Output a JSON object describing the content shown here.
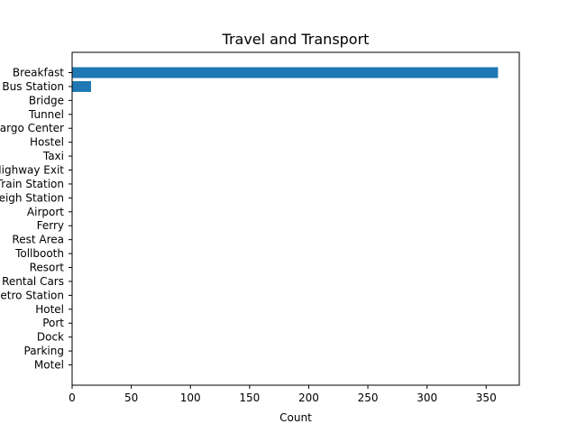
{
  "chart_data": {
    "type": "bar",
    "orientation": "horizontal",
    "title": "Travel and Transport",
    "xlabel": "Count",
    "ylabel": "",
    "xlim": [
      0,
      378
    ],
    "xticks": [
      0,
      50,
      100,
      150,
      200,
      250,
      300,
      350
    ],
    "grid": false,
    "bar_color": "#1f77b4",
    "categories": [
      "Breakfast",
      "Bus Station",
      "Bridge",
      "Tunnel",
      "Cargo Center",
      "Hostel",
      "Taxi",
      "Highway Exit",
      "Train Station",
      "Weigh Station",
      "Airport",
      "Ferry",
      "Rest Area",
      "Tollbooth",
      "Resort",
      "Rental Cars",
      "Metro Station",
      "Hotel",
      "Port",
      "Dock",
      "Parking",
      "Motel"
    ],
    "values": [
      360,
      16,
      0,
      0,
      0,
      0,
      0,
      0,
      0,
      0,
      0,
      0,
      0,
      0,
      0,
      0,
      0,
      0,
      0,
      0,
      0,
      0
    ]
  }
}
